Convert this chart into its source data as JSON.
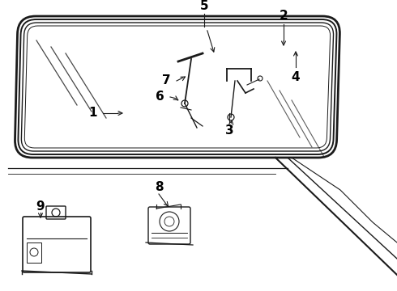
{
  "bg_color": "#ffffff",
  "line_color": "#1a1a1a",
  "label_color": "#000000",
  "label_fontsize": 11,
  "label_fontweight": "bold",
  "figsize": [
    4.9,
    3.6
  ],
  "dpi": 100
}
